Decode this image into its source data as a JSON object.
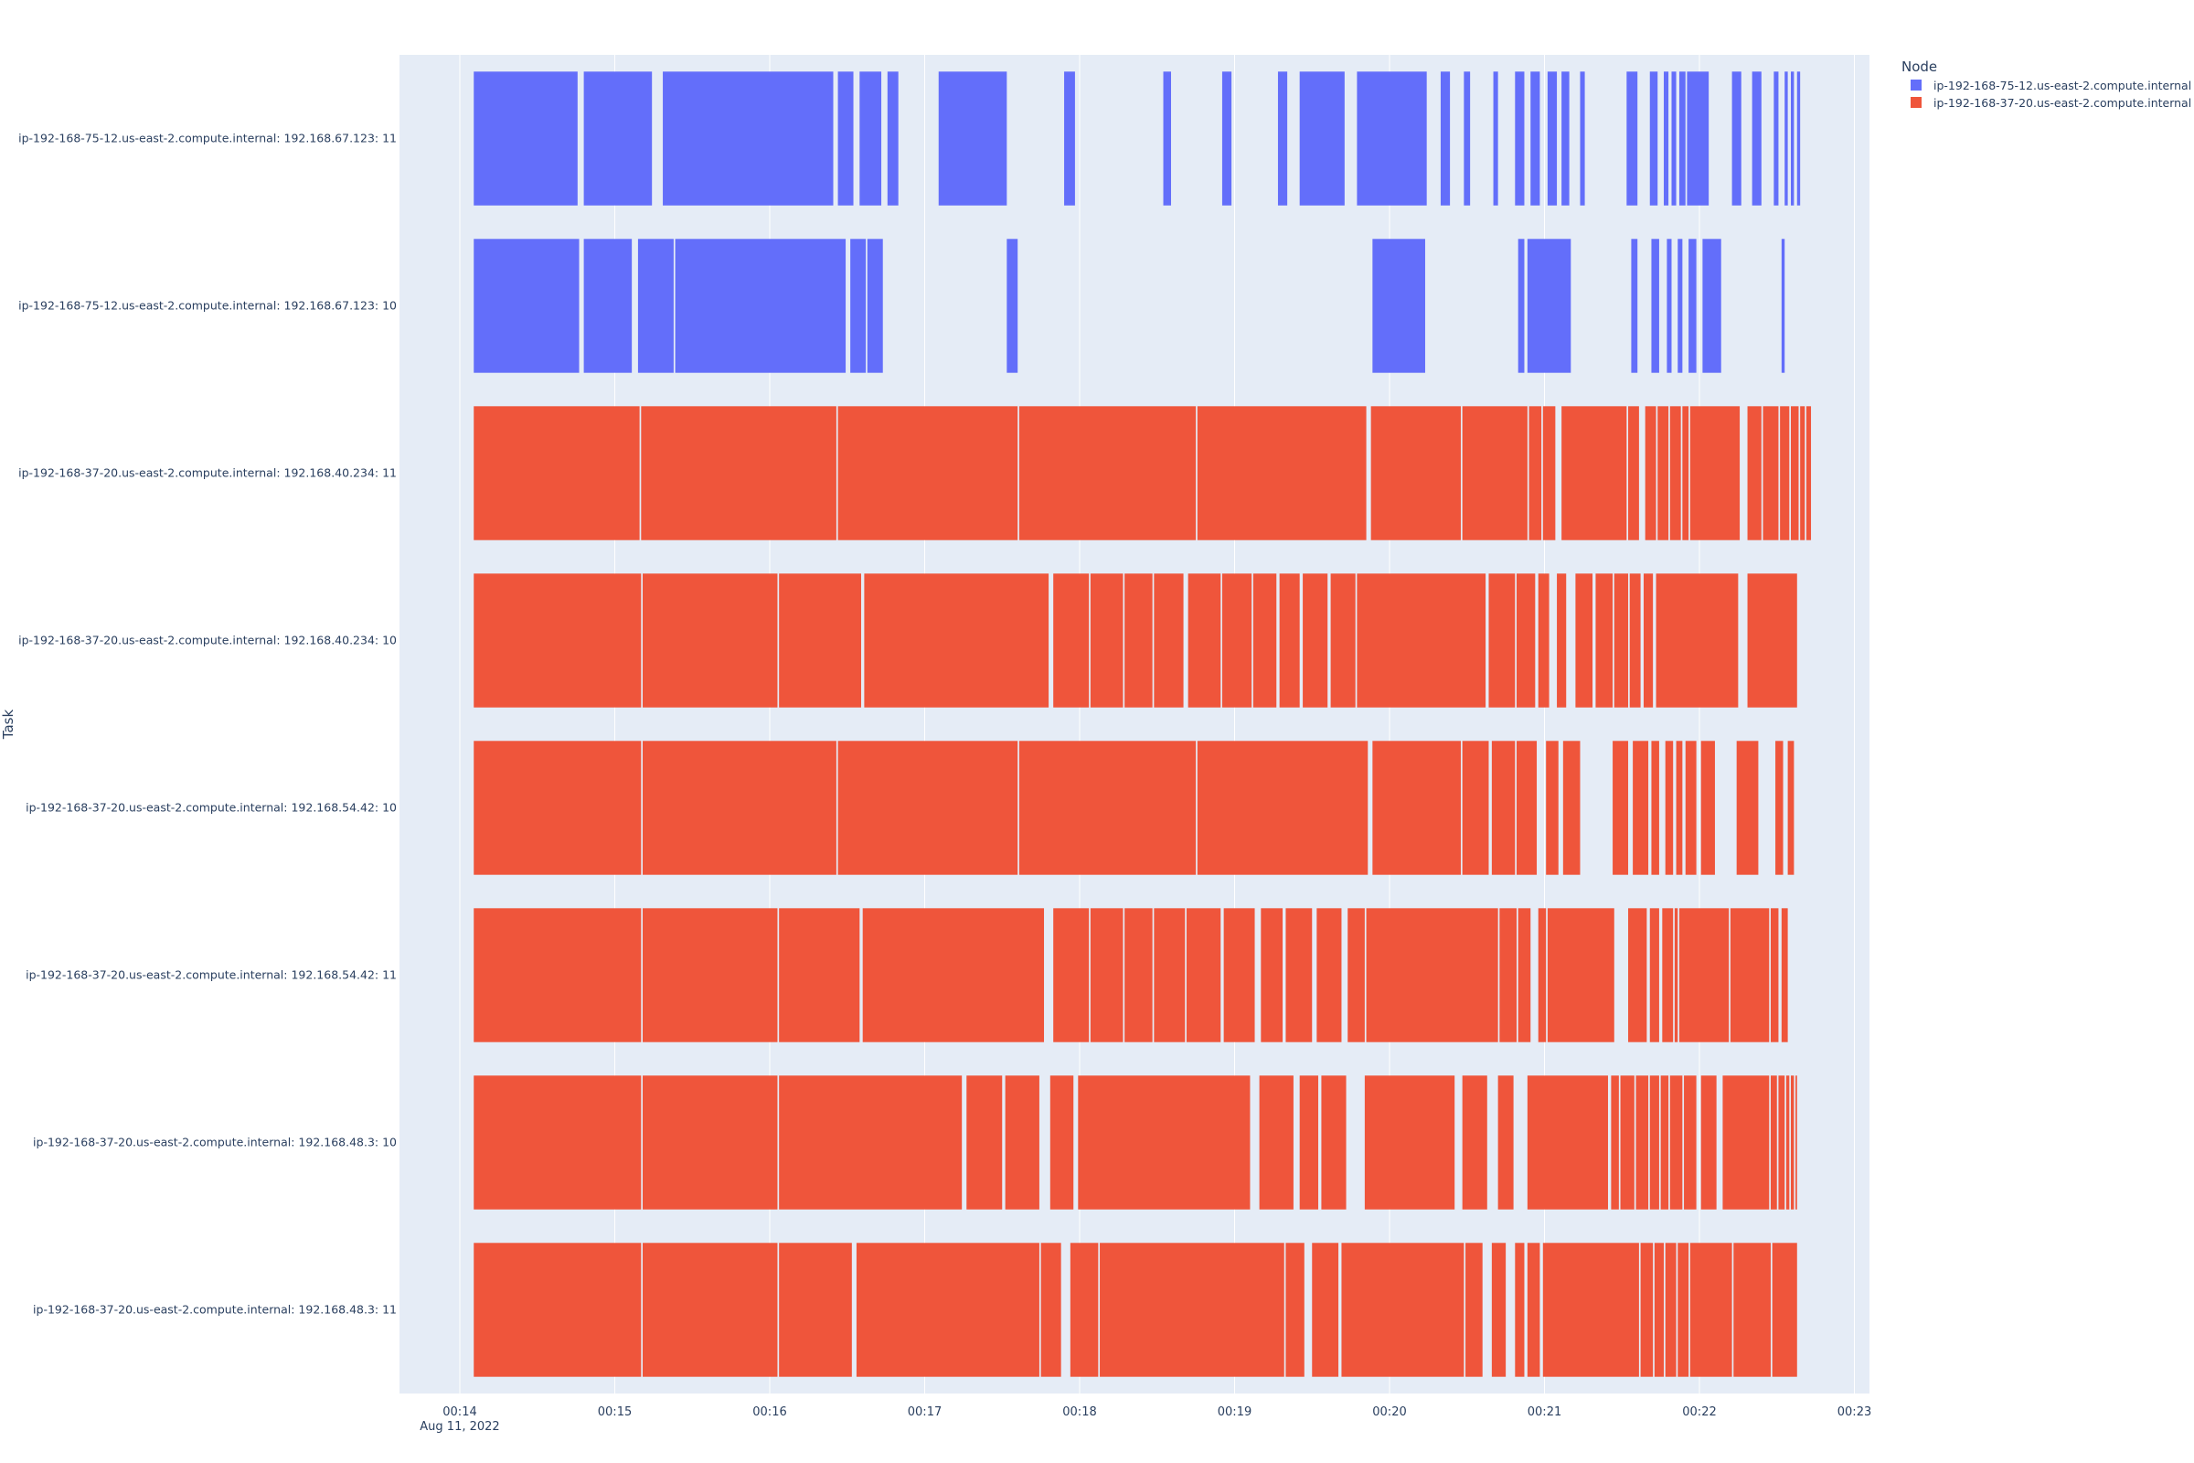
{
  "chart_data": {
    "type": "timeline",
    "ylabel": "Task",
    "xlabel": "",
    "x_ticks": [
      "00:14",
      "00:15",
      "00:16",
      "00:17",
      "00:18",
      "00:19",
      "00:20",
      "00:21",
      "00:22",
      "00:23"
    ],
    "x_date_label": "Aug 11, 2022",
    "xlim": [
      "00:13:37",
      "00:23:06"
    ],
    "legend": {
      "title": "Node",
      "position": "top-right",
      "entries": [
        {
          "name": "ip-192-168-75-12.us-east-2.compute.internal",
          "color": "#636efa"
        },
        {
          "name": "ip-192-168-37-20.us-east-2.compute.internal",
          "color": "#ef553b"
        }
      ]
    },
    "colors": {
      "plot_bg": "#e5ecf6",
      "grid": "#ffffff"
    },
    "time_unit": "minutes after 00:14",
    "tasks": [
      {
        "name": "ip-192-168-75-12.us-east-2.compute.internal: 192.168.67.123: 11",
        "node": 0,
        "segments": [
          [
            0.09,
            0.76
          ],
          [
            0.8,
            1.24
          ],
          [
            1.31,
            2.41
          ],
          [
            2.44,
            2.54
          ],
          [
            2.58,
            2.72
          ],
          [
            2.76,
            2.83
          ],
          [
            3.09,
            3.53
          ],
          [
            3.9,
            3.97
          ],
          [
            4.54,
            4.59
          ],
          [
            4.92,
            4.98
          ],
          [
            5.28,
            5.34
          ],
          [
            5.42,
            5.71
          ],
          [
            5.79,
            6.24
          ],
          [
            6.33,
            6.39
          ],
          [
            6.48,
            6.52
          ],
          [
            6.67,
            6.7
          ],
          [
            6.81,
            6.87
          ],
          [
            6.91,
            6.97
          ],
          [
            7.02,
            7.08
          ],
          [
            7.11,
            7.16
          ],
          [
            7.23,
            7.26
          ],
          [
            7.53,
            7.6
          ],
          [
            7.68,
            7.73
          ],
          [
            7.77,
            7.8
          ],
          [
            7.82,
            7.85
          ],
          [
            7.87,
            7.91
          ],
          [
            7.92,
            8.06
          ],
          [
            8.21,
            8.27
          ],
          [
            8.34,
            8.4
          ],
          [
            8.48,
            8.51
          ],
          [
            8.55,
            8.57
          ],
          [
            8.59,
            8.61
          ],
          [
            8.63,
            8.65
          ]
        ]
      },
      {
        "name": "ip-192-168-75-12.us-east-2.compute.internal: 192.168.67.123: 10",
        "node": 0,
        "segments": [
          [
            0.09,
            0.77
          ],
          [
            0.8,
            1.11
          ],
          [
            1.15,
            1.38
          ],
          [
            1.39,
            2.49
          ],
          [
            2.52,
            2.62
          ],
          [
            2.63,
            2.73
          ],
          [
            3.53,
            3.6
          ],
          [
            5.89,
            6.23
          ],
          [
            6.83,
            6.87
          ],
          [
            6.89,
            7.17
          ],
          [
            7.56,
            7.6
          ],
          [
            7.69,
            7.74
          ],
          [
            7.79,
            7.82
          ],
          [
            7.86,
            7.89
          ],
          [
            7.93,
            7.98
          ],
          [
            8.02,
            8.14
          ],
          [
            8.53,
            8.55
          ]
        ]
      },
      {
        "name": "ip-192-168-37-20.us-east-2.compute.internal: 192.168.40.234: 11",
        "node": 1,
        "segments": [
          [
            0.09,
            1.16
          ],
          [
            1.17,
            2.43
          ],
          [
            2.44,
            3.6
          ],
          [
            3.61,
            4.75
          ],
          [
            4.76,
            5.85
          ],
          [
            5.88,
            6.46
          ],
          [
            6.47,
            6.89
          ],
          [
            6.9,
            6.98
          ],
          [
            6.99,
            7.07
          ],
          [
            7.11,
            7.53
          ],
          [
            7.54,
            7.61
          ],
          [
            7.65,
            7.72
          ],
          [
            7.73,
            7.8
          ],
          [
            7.81,
            7.88
          ],
          [
            7.89,
            7.93
          ],
          [
            7.94,
            8.26
          ],
          [
            8.31,
            8.4
          ],
          [
            8.41,
            8.51
          ],
          [
            8.52,
            8.58
          ],
          [
            8.59,
            8.64
          ],
          [
            8.65,
            8.68
          ],
          [
            8.69,
            8.72
          ]
        ]
      },
      {
        "name": "ip-192-168-37-20.us-east-2.compute.internal: 192.168.40.234: 10",
        "node": 1,
        "segments": [
          [
            0.09,
            1.17
          ],
          [
            1.18,
            2.05
          ],
          [
            2.06,
            2.59
          ],
          [
            2.61,
            3.8
          ],
          [
            3.83,
            4.06
          ],
          [
            4.07,
            4.28
          ],
          [
            4.29,
            4.47
          ],
          [
            4.48,
            4.67
          ],
          [
            4.7,
            4.91
          ],
          [
            4.92,
            5.11
          ],
          [
            5.12,
            5.27
          ],
          [
            5.29,
            5.42
          ],
          [
            5.44,
            5.6
          ],
          [
            5.62,
            5.78
          ],
          [
            5.79,
            6.62
          ],
          [
            6.64,
            6.81
          ],
          [
            6.82,
            6.94
          ],
          [
            6.96,
            7.03
          ],
          [
            7.08,
            7.14
          ],
          [
            7.2,
            7.31
          ],
          [
            7.33,
            7.44
          ],
          [
            7.45,
            7.54
          ],
          [
            7.55,
            7.62
          ],
          [
            7.64,
            7.7
          ],
          [
            7.72,
            8.25
          ],
          [
            8.31,
            8.63
          ]
        ]
      },
      {
        "name": "ip-192-168-37-20.us-east-2.compute.internal: 192.168.54.42: 10",
        "node": 1,
        "segments": [
          [
            0.09,
            1.17
          ],
          [
            1.18,
            2.43
          ],
          [
            2.44,
            3.6
          ],
          [
            3.61,
            4.75
          ],
          [
            4.76,
            5.86
          ],
          [
            5.89,
            6.46
          ],
          [
            6.47,
            6.64
          ],
          [
            6.66,
            6.81
          ],
          [
            6.82,
            6.95
          ],
          [
            7.01,
            7.09
          ],
          [
            7.12,
            7.23
          ],
          [
            7.44,
            7.54
          ],
          [
            7.57,
            7.67
          ],
          [
            7.69,
            7.74
          ],
          [
            7.78,
            7.83
          ],
          [
            7.85,
            7.89
          ],
          [
            7.91,
            7.98
          ],
          [
            8.01,
            8.1
          ],
          [
            8.24,
            8.38
          ],
          [
            8.49,
            8.54
          ],
          [
            8.57,
            8.61
          ]
        ]
      },
      {
        "name": "ip-192-168-37-20.us-east-2.compute.internal: 192.168.54.42: 11",
        "node": 1,
        "segments": [
          [
            0.09,
            1.17
          ],
          [
            1.18,
            2.05
          ],
          [
            2.06,
            2.58
          ],
          [
            2.6,
            3.77
          ],
          [
            3.83,
            4.06
          ],
          [
            4.07,
            4.28
          ],
          [
            4.29,
            4.47
          ],
          [
            4.48,
            4.68
          ],
          [
            4.69,
            4.91
          ],
          [
            4.93,
            5.13
          ],
          [
            5.17,
            5.31
          ],
          [
            5.33,
            5.5
          ],
          [
            5.53,
            5.69
          ],
          [
            5.73,
            5.84
          ],
          [
            5.85,
            6.7
          ],
          [
            6.71,
            6.82
          ],
          [
            6.83,
            6.91
          ],
          [
            6.96,
            7.01
          ],
          [
            7.02,
            7.45
          ],
          [
            7.54,
            7.66
          ],
          [
            7.68,
            7.74
          ],
          [
            7.76,
            7.83
          ],
          [
            7.84,
            7.86
          ],
          [
            7.87,
            8.19
          ],
          [
            8.2,
            8.45
          ],
          [
            8.46,
            8.51
          ],
          [
            8.53,
            8.57
          ]
        ]
      },
      {
        "name": "ip-192-168-37-20.us-east-2.compute.internal: 192.168.48.3: 10",
        "node": 1,
        "segments": [
          [
            0.09,
            1.17
          ],
          [
            1.18,
            2.05
          ],
          [
            2.06,
            3.24
          ],
          [
            3.27,
            3.5
          ],
          [
            3.52,
            3.74
          ],
          [
            3.81,
            3.96
          ],
          [
            3.99,
            5.1
          ],
          [
            5.16,
            5.38
          ],
          [
            5.42,
            5.54
          ],
          [
            5.56,
            5.72
          ],
          [
            5.84,
            6.42
          ],
          [
            6.47,
            6.63
          ],
          [
            6.7,
            6.8
          ],
          [
            6.89,
            7.41
          ],
          [
            7.43,
            7.48
          ],
          [
            7.49,
            7.58
          ],
          [
            7.59,
            7.67
          ],
          [
            7.68,
            7.74
          ],
          [
            7.75,
            7.8
          ],
          [
            7.81,
            7.89
          ],
          [
            7.9,
            7.98
          ],
          [
            8.01,
            8.11
          ],
          [
            8.15,
            8.45
          ],
          [
            8.46,
            8.5
          ],
          [
            8.51,
            8.55
          ],
          [
            8.56,
            8.58
          ],
          [
            8.59,
            8.61
          ],
          [
            8.62,
            8.63
          ]
        ]
      },
      {
        "name": "ip-192-168-37-20.us-east-2.compute.internal: 192.168.48.3: 11",
        "node": 1,
        "segments": [
          [
            0.09,
            1.17
          ],
          [
            1.18,
            2.05
          ],
          [
            2.06,
            2.53
          ],
          [
            2.56,
            3.74
          ],
          [
            3.75,
            3.88
          ],
          [
            3.94,
            4.12
          ],
          [
            4.13,
            5.32
          ],
          [
            5.33,
            5.45
          ],
          [
            5.5,
            5.67
          ],
          [
            5.69,
            6.48
          ],
          [
            6.49,
            6.6
          ],
          [
            6.66,
            6.75
          ],
          [
            6.81,
            6.87
          ],
          [
            6.89,
            6.97
          ],
          [
            6.99,
            7.61
          ],
          [
            7.62,
            7.7
          ],
          [
            7.71,
            7.77
          ],
          [
            7.78,
            7.85
          ],
          [
            7.86,
            7.93
          ],
          [
            7.94,
            8.21
          ],
          [
            8.22,
            8.46
          ],
          [
            8.47,
            8.63
          ]
        ]
      }
    ]
  }
}
